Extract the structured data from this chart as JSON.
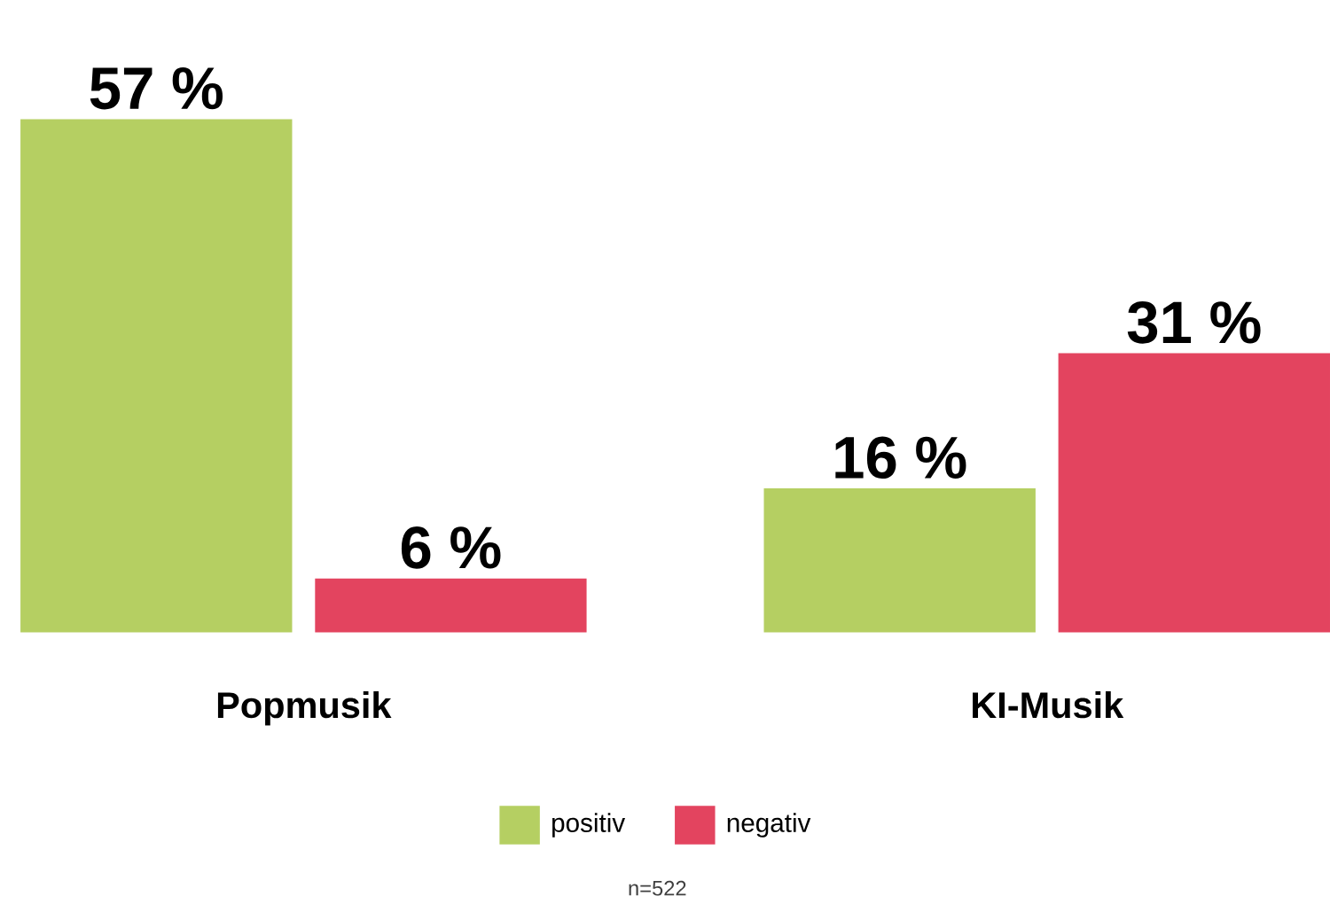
{
  "chart_data": {
    "type": "bar",
    "categories": [
      "Popmusik",
      "KI-Musik"
    ],
    "series": [
      {
        "name": "positiv",
        "color": "#b5cf62",
        "values": [
          57,
          16
        ],
        "value_labels": [
          "57 %",
          "16 %"
        ]
      },
      {
        "name": "negativ",
        "color": "#e3445f",
        "values": [
          6,
          31
        ],
        "value_labels": [
          "6 %",
          "31 %"
        ]
      }
    ],
    "legend": "bottom",
    "annotations": [
      "n=522"
    ]
  }
}
